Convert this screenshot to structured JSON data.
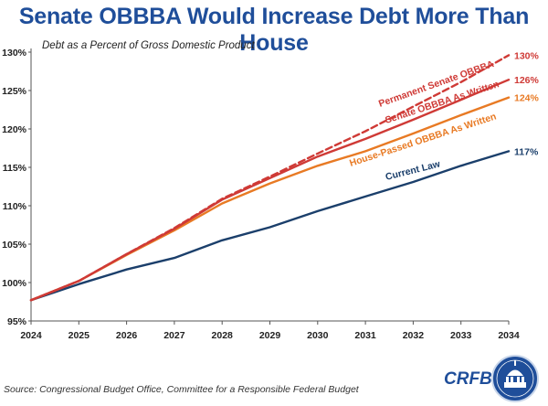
{
  "header": {
    "title": "Senate OBBBA Would Increase Debt More Than House",
    "subtitle": "Debt as a Percent of Gross Domestic Product"
  },
  "footer": {
    "source": "Source: Congressional Budget Office, Committee for a Responsible Federal Budget",
    "brand": "CRFB.org"
  },
  "colors": {
    "permanent_senate": "#cf3a36",
    "senate_as_written": "#cf3a36",
    "house_passed": "#e87a24",
    "current_law": "#1b3f6b",
    "title": "#1f4e9a"
  },
  "chart_data": {
    "type": "line",
    "title": "Senate OBBBA Would Increase Debt More Than House",
    "ylabel": "Debt as a Percent of Gross Domestic Product",
    "xlabel": "",
    "x": [
      2024,
      2025,
      2026,
      2027,
      2028,
      2029,
      2030,
      2031,
      2032,
      2033,
      2034
    ],
    "xlim": [
      2024,
      2034
    ],
    "ylim": [
      95,
      130
    ],
    "ytick_values": [
      95,
      100,
      105,
      110,
      115,
      120,
      125,
      130
    ],
    "ytick_labels": [
      "95%",
      "100%",
      "105%",
      "110%",
      "115%",
      "120%",
      "125%",
      "130%"
    ],
    "xtick_labels": [
      "2024",
      "2025",
      "2026",
      "2027",
      "2028",
      "2029",
      "2030",
      "2031",
      "2032",
      "2033",
      "2034"
    ],
    "grid": false,
    "series": [
      {
        "key": "permanent_senate",
        "name": "Permanent Senate OBBBA",
        "style": "dashed",
        "values": [
          97.7,
          100.2,
          103.7,
          107.1,
          110.9,
          113.8,
          116.8,
          119.7,
          122.9,
          126.1,
          129.6
        ],
        "end_label": "130%"
      },
      {
        "key": "senate_as_written",
        "name": "Senate OBBBA As Written",
        "style": "solid",
        "values": [
          97.7,
          100.2,
          103.7,
          107.0,
          110.8,
          113.6,
          116.4,
          118.7,
          121.2,
          123.8,
          126.4
        ],
        "end_label": "126%"
      },
      {
        "key": "house_passed",
        "name": "House-Passed OBBBA As Written",
        "style": "solid",
        "values": [
          97.7,
          100.2,
          103.6,
          106.8,
          110.3,
          112.9,
          115.2,
          117.1,
          119.4,
          121.8,
          124.1
        ],
        "end_label": "124%"
      },
      {
        "key": "current_law",
        "name": "Current Law",
        "style": "solid",
        "values": [
          97.7,
          99.8,
          101.7,
          103.2,
          105.5,
          107.2,
          109.3,
          111.2,
          113.1,
          115.2,
          117.1
        ],
        "end_label": "117%"
      }
    ]
  }
}
